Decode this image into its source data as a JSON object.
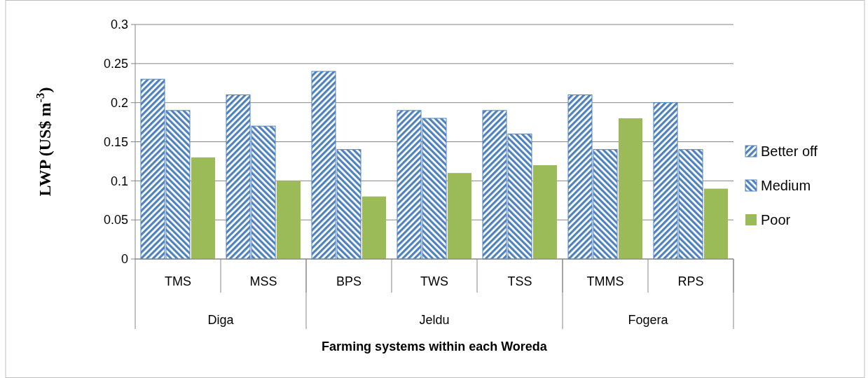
{
  "chart_data": {
    "type": "bar",
    "xlabel": "Farming systems within each Woreda",
    "ylabel": "LWP (US$ m$^{-3}$)",
    "categories": [
      "TMS",
      "MSS",
      "BPS",
      "TWS",
      "TSS",
      "TMMS",
      "RPS"
    ],
    "series": [
      {
        "name": "Better off",
        "color": "#4f81bd",
        "values": [
          0.23,
          0.21,
          0.24,
          0.19,
          0.19,
          0.21,
          0.2
        ]
      },
      {
        "name": "Medium",
        "color": "#4f81bd",
        "values": [
          0.19,
          0.17,
          0.14,
          0.18,
          0.16,
          0.14,
          0.14
        ]
      },
      {
        "name": "Poor",
        "color": "#9bbb59",
        "values": [
          0.13,
          0.1,
          0.08,
          0.11,
          0.12,
          0.18,
          0.09
        ]
      }
    ],
    "ylim": [
      0,
      0.3
    ],
    "yticks": [
      0,
      0.05,
      0.1,
      0.15,
      0.2,
      0.25,
      0.3
    ],
    "grid": "y",
    "legend": "right",
    "annotations": [
      "Diga",
      "Jeldu",
      "Fogera"
    ]
  }
}
